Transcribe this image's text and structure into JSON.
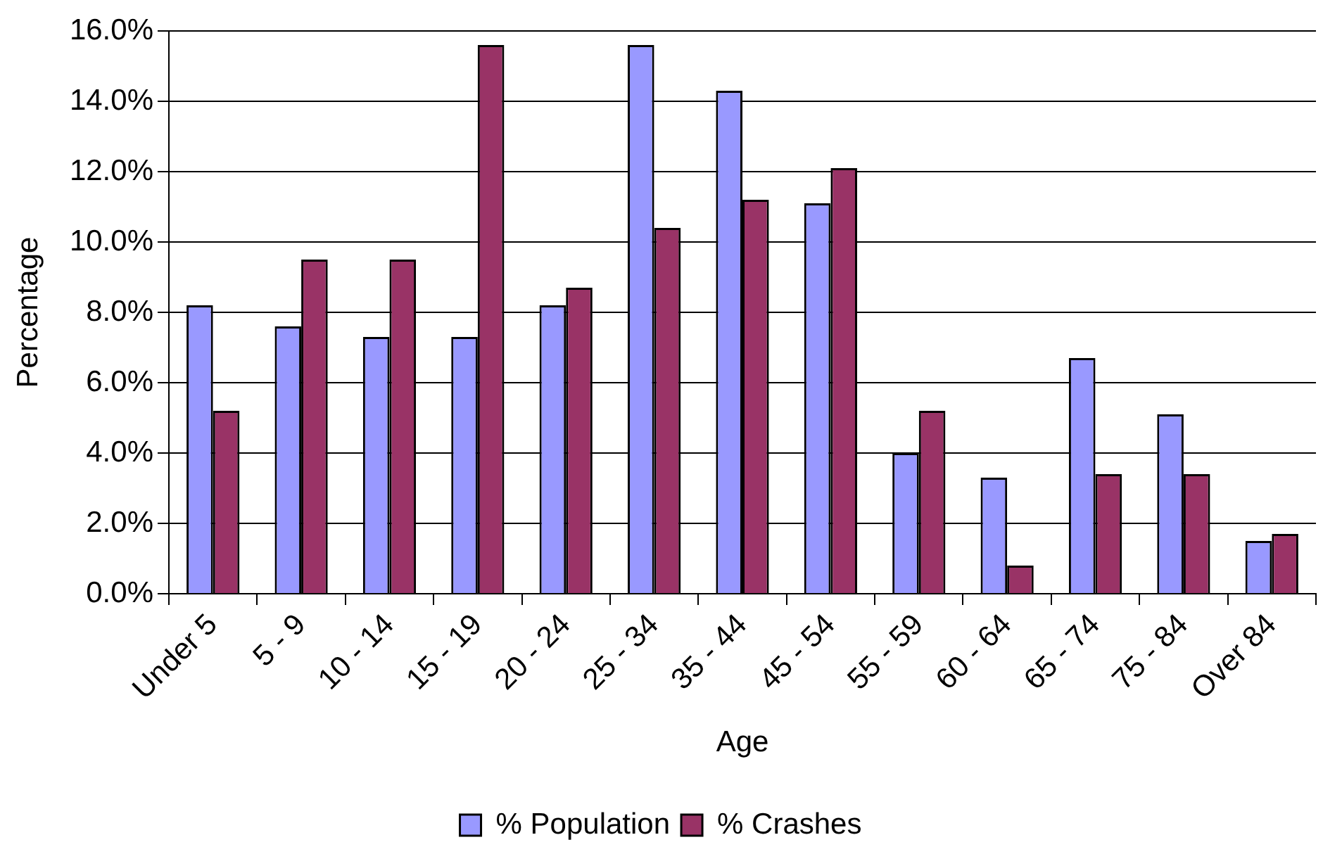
{
  "chart_data": {
    "type": "bar",
    "xlabel": "Age",
    "ylabel": "Percentage",
    "categories": [
      "Under 5",
      "5 - 9",
      "10 - 14",
      "15 - 19",
      "20 - 24",
      "25 - 34",
      "35 - 44",
      "45 - 54",
      "55 - 59",
      "60 - 64",
      "65 - 74",
      "75 - 84",
      "Over 84"
    ],
    "series": [
      {
        "name": "% Population",
        "color": "#9999ff",
        "values": [
          8.2,
          7.6,
          7.3,
          7.3,
          8.2,
          15.6,
          14.3,
          11.1,
          4.0,
          3.3,
          6.7,
          5.1,
          1.5
        ]
      },
      {
        "name": "% Crashes",
        "color": "#993366",
        "values": [
          5.2,
          9.5,
          9.5,
          15.6,
          8.7,
          10.4,
          11.2,
          12.1,
          5.2,
          0.8,
          3.4,
          3.4,
          1.7
        ]
      }
    ],
    "ylim": [
      0,
      16
    ],
    "yticks": [
      {
        "value": 0,
        "label": "0.0%"
      },
      {
        "value": 2,
        "label": "2.0%"
      },
      {
        "value": 4,
        "label": "4.0%"
      },
      {
        "value": 6,
        "label": "6.0%"
      },
      {
        "value": 8,
        "label": "8.0%"
      },
      {
        "value": 10,
        "label": "10.0%"
      },
      {
        "value": 12,
        "label": "12.0%"
      },
      {
        "value": 14,
        "label": "14.0%"
      },
      {
        "value": 16,
        "label": "16.0%"
      }
    ],
    "grid": "y",
    "legend": "bottom"
  }
}
